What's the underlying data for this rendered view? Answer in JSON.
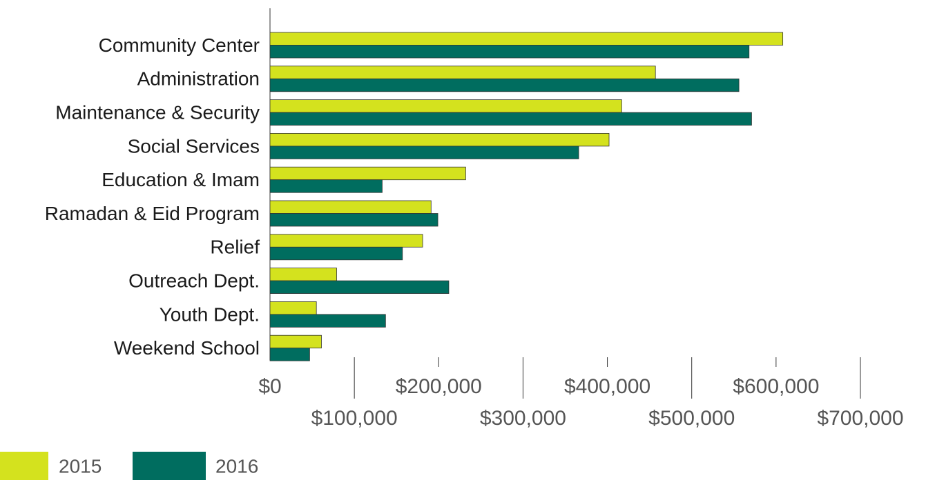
{
  "chart_data": {
    "type": "bar",
    "orientation": "horizontal",
    "categories": [
      "Community Center",
      "Administration",
      "Maintenance & Security",
      "Social Services",
      "Education & Imam",
      "Ramadan & Eid Program",
      "Relief",
      "Outreach Dept.",
      "Youth Dept.",
      "Weekend School"
    ],
    "series": [
      {
        "name": "2015",
        "color": "#d4e21e",
        "values": [
          608000,
          457000,
          417000,
          402000,
          232000,
          191000,
          181000,
          79000,
          55000,
          61000
        ]
      },
      {
        "name": "2016",
        "color": "#006d5f",
        "values": [
          568000,
          556000,
          571000,
          366000,
          133000,
          199000,
          157000,
          212000,
          137000,
          47000
        ]
      }
    ],
    "xlim": [
      0,
      700000
    ],
    "xticks": [
      {
        "value": 0,
        "label": "$0"
      },
      {
        "value": 100000,
        "label": "$100,000"
      },
      {
        "value": 200000,
        "label": "$200,000"
      },
      {
        "value": 300000,
        "label": "$300,000"
      },
      {
        "value": 400000,
        "label": "$400,000"
      },
      {
        "value": 500000,
        "label": "$500,000"
      },
      {
        "value": 600000,
        "label": "$600,000"
      },
      {
        "value": 700000,
        "label": "$700,000"
      }
    ],
    "legend": "bottom-left"
  }
}
